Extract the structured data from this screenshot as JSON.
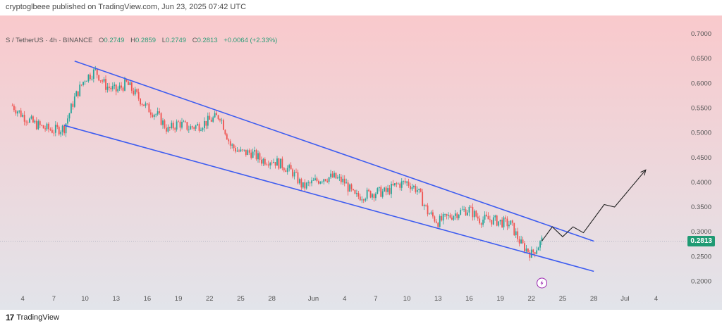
{
  "header": {
    "publish_text": "cryptoglbeee published on TradingView.com, Jun 23, 2025 07:42 UTC"
  },
  "legend": {
    "symbol": "S / TetherUS · 4h · BINANCE",
    "open_label": "O",
    "open": "0.2749",
    "high_label": "H",
    "high": "0.2859",
    "low_label": "L",
    "low": "0.2749",
    "close_label": "C",
    "close": "0.2813",
    "change": "+0.0064 (+2.33%)"
  },
  "price_tag": "0.2813",
  "footer": {
    "logo_text": "TradingView",
    "logo_mark": "17"
  },
  "colors": {
    "up": "#26a69a",
    "down": "#ef5350",
    "channel": "#3d5cf0",
    "projection": "#222222",
    "price_tag": "#1f9a73",
    "bg_top": "#f9c9cc",
    "bg_bottom": "#e2e4ea"
  },
  "icons": {
    "event_marker": "lightning-icon"
  },
  "chart_data": {
    "type": "candlestick",
    "title": "",
    "y_ticks": [
      "0.7000",
      "0.6500",
      "0.6000",
      "0.5500",
      "0.5000",
      "0.4500",
      "0.4000",
      "0.3500",
      "0.3000",
      "0.2500",
      "0.2000"
    ],
    "ylim": [
      0.175,
      0.73
    ],
    "x_ticks": [
      "4",
      "7",
      "10",
      "13",
      "16",
      "19",
      "22",
      "25",
      "28",
      "Jun",
      "4",
      "7",
      "10",
      "13",
      "16",
      "19",
      "22",
      "25",
      "28",
      "Jul",
      "4"
    ],
    "x_tick_dates": [
      "2025-05-04",
      "2025-05-07",
      "2025-05-10",
      "2025-05-13",
      "2025-05-16",
      "2025-05-19",
      "2025-05-22",
      "2025-05-25",
      "2025-05-28",
      "2025-06-01",
      "2025-06-04",
      "2025-06-07",
      "2025-06-10",
      "2025-06-13",
      "2025-06-16",
      "2025-06-19",
      "2025-06-22",
      "2025-06-25",
      "2025-06-28",
      "2025-07-01",
      "2025-07-04"
    ],
    "close_path": [
      [
        "2025-05-03",
        0.555
      ],
      [
        "2025-05-04",
        0.535
      ],
      [
        "2025-05-05",
        0.52
      ],
      [
        "2025-05-06",
        0.51
      ],
      [
        "2025-05-07",
        0.505
      ],
      [
        "2025-05-08",
        0.51
      ],
      [
        "2025-05-09",
        0.57
      ],
      [
        "2025-05-10",
        0.61
      ],
      [
        "2025-05-11",
        0.625
      ],
      [
        "2025-05-12",
        0.595
      ],
      [
        "2025-05-13",
        0.585
      ],
      [
        "2025-05-14",
        0.6
      ],
      [
        "2025-05-15",
        0.575
      ],
      [
        "2025-05-16",
        0.55
      ],
      [
        "2025-05-17",
        0.535
      ],
      [
        "2025-05-18",
        0.505
      ],
      [
        "2025-05-19",
        0.52
      ],
      [
        "2025-05-20",
        0.51
      ],
      [
        "2025-05-21",
        0.515
      ],
      [
        "2025-05-22",
        0.525
      ],
      [
        "2025-05-23",
        0.535
      ],
      [
        "2025-05-24",
        0.475
      ],
      [
        "2025-05-25",
        0.46
      ],
      [
        "2025-05-26",
        0.46
      ],
      [
        "2025-05-27",
        0.445
      ],
      [
        "2025-05-28",
        0.445
      ],
      [
        "2025-05-29",
        0.435
      ],
      [
        "2025-05-30",
        0.42
      ],
      [
        "2025-05-31",
        0.39
      ],
      [
        "2025-06-01",
        0.4
      ],
      [
        "2025-06-02",
        0.41
      ],
      [
        "2025-06-03",
        0.41
      ],
      [
        "2025-06-04",
        0.4
      ],
      [
        "2025-06-05",
        0.37
      ],
      [
        "2025-06-06",
        0.375
      ],
      [
        "2025-06-07",
        0.38
      ],
      [
        "2025-06-08",
        0.38
      ],
      [
        "2025-06-09",
        0.395
      ],
      [
        "2025-06-10",
        0.4
      ],
      [
        "2025-06-11",
        0.385
      ],
      [
        "2025-06-12",
        0.34
      ],
      [
        "2025-06-13",
        0.32
      ],
      [
        "2025-06-14",
        0.33
      ],
      [
        "2025-06-15",
        0.34
      ],
      [
        "2025-06-16",
        0.345
      ],
      [
        "2025-06-17",
        0.325
      ],
      [
        "2025-06-18",
        0.325
      ],
      [
        "2025-06-19",
        0.32
      ],
      [
        "2025-06-20",
        0.315
      ],
      [
        "2025-06-21",
        0.275
      ],
      [
        "2025-06-22",
        0.255
      ],
      [
        "2025-06-23",
        0.2813
      ]
    ],
    "channel_upper": [
      [
        "2025-05-09",
        0.645
      ],
      [
        "2025-06-28",
        0.281
      ]
    ],
    "channel_lower": [
      [
        "2025-05-08",
        0.515
      ],
      [
        "2025-06-28",
        0.22
      ]
    ],
    "projection": [
      [
        "2025-06-23",
        0.2813
      ],
      [
        "2025-06-24",
        0.31
      ],
      [
        "2025-06-25",
        0.29
      ],
      [
        "2025-06-26",
        0.31
      ],
      [
        "2025-06-27",
        0.298
      ],
      [
        "2025-06-29",
        0.355
      ],
      [
        "2025-06-30",
        0.35
      ],
      [
        "2025-07-03",
        0.425
      ]
    ],
    "last_price": 0.2813,
    "grid": false,
    "background": "gradient"
  }
}
